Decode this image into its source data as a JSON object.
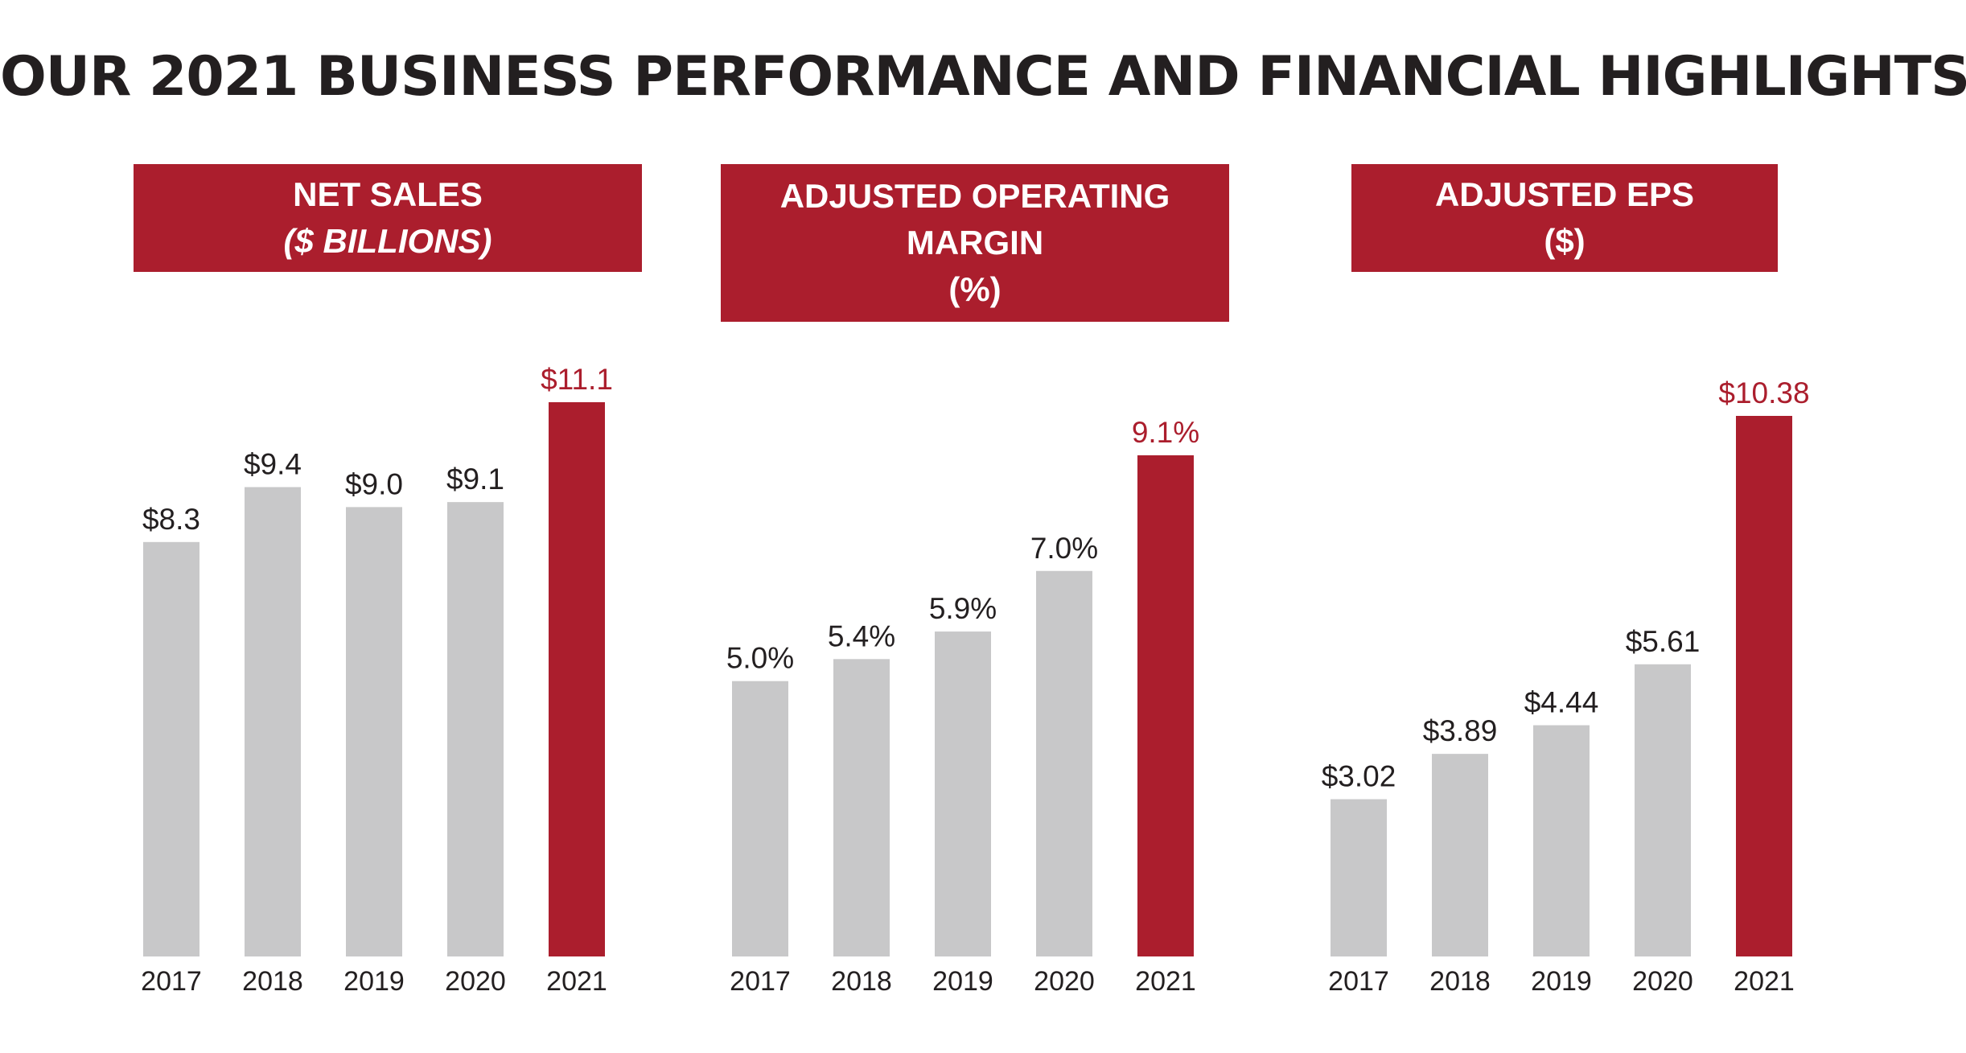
{
  "page_title": "OUR 2021 BUSINESS PERFORMANCE AND FINANCIAL HIGHLIGHTS",
  "colors": {
    "highlight": "#ab1e2d",
    "bar": "#c8c8c9",
    "text": "#231f20"
  },
  "panels": [
    {
      "header_lines": [
        "NET SALES",
        "($ BILLIONS)"
      ]
    },
    {
      "header_lines": [
        "ADJUSTED OPERATING",
        "MARGIN",
        "(%)"
      ]
    },
    {
      "header_lines": [
        "ADJUSTED EPS",
        "($)"
      ]
    }
  ],
  "chart_data": [
    {
      "type": "bar",
      "title": "NET SALES ($ BILLIONS)",
      "categories": [
        "2017",
        "2018",
        "2019",
        "2020",
        "2021"
      ],
      "values": [
        8.3,
        9.4,
        9.0,
        9.1,
        11.1
      ],
      "data_labels": [
        "$8.3",
        "$9.4",
        "$9.0",
        "$9.1",
        "$11.1"
      ],
      "highlight_index": 4,
      "ylim": [
        0,
        11.1
      ]
    },
    {
      "type": "bar",
      "title": "ADJUSTED OPERATING MARGIN (%)",
      "categories": [
        "2017",
        "2018",
        "2019",
        "2020",
        "2021"
      ],
      "values": [
        5.0,
        5.4,
        5.9,
        7.0,
        9.1
      ],
      "data_labels": [
        "5.0%",
        "5.4%",
        "5.9%",
        "7.0%",
        "9.1%"
      ],
      "highlight_index": 4,
      "ylim": [
        0,
        9.1
      ]
    },
    {
      "type": "bar",
      "title": "ADJUSTED EPS ($)",
      "categories": [
        "2017",
        "2018",
        "2019",
        "2020",
        "2021"
      ],
      "values": [
        3.02,
        3.89,
        4.44,
        5.61,
        10.38
      ],
      "data_labels": [
        "$3.02",
        "$3.89",
        "$4.44",
        "$5.61",
        "$10.38"
      ],
      "highlight_index": 4,
      "ylim": [
        0,
        10.38
      ]
    }
  ]
}
